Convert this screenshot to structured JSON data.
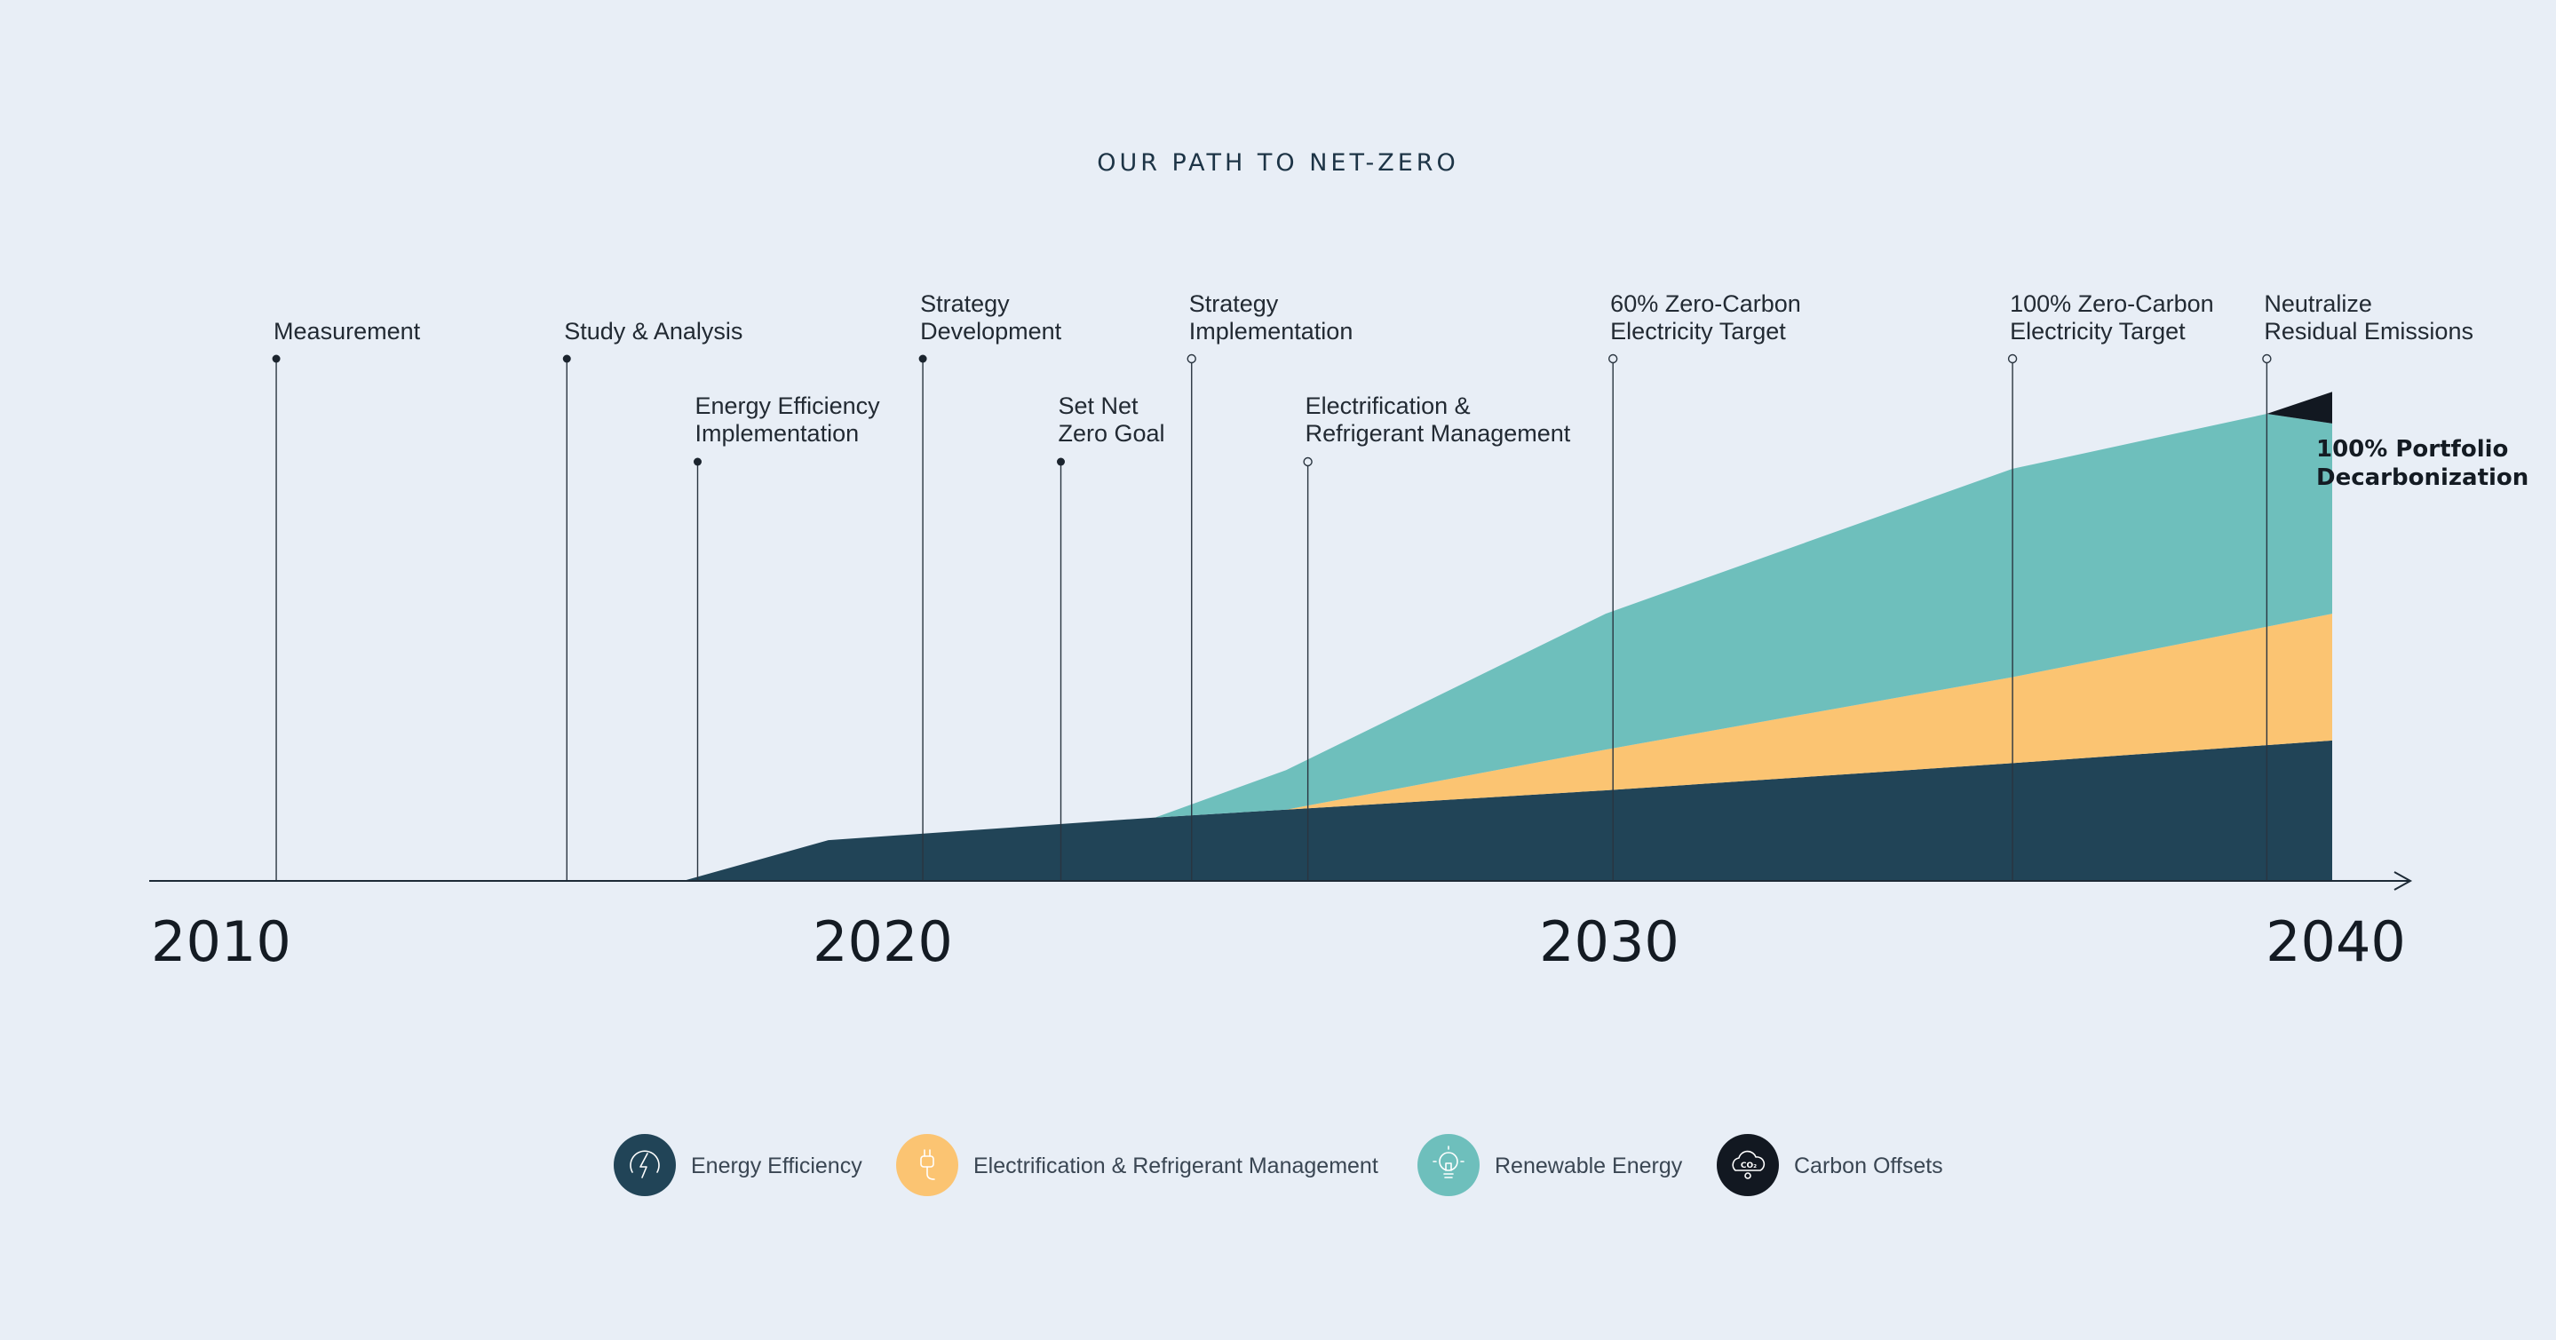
{
  "title": "OUR PATH TO NET-ZERO",
  "colors": {
    "background": "#e8eef6",
    "energy_efficiency": "#214457",
    "electrification": "#fbc472",
    "renewable": "#6ebfbc",
    "carbon_offsets": "#121821",
    "axis": "#1d2a36"
  },
  "chart_data": {
    "type": "area",
    "title": "OUR PATH TO NET-ZERO",
    "x_ticks": [
      "2010",
      "2020",
      "2030",
      "2040"
    ],
    "xlim": [
      2010,
      2043.5
    ],
    "ylim": [
      0,
      100
    ],
    "stacked": true,
    "series": [
      {
        "name": "Energy Efficiency",
        "color": "#214457",
        "icon": "lightning-leaf-icon",
        "points": [
          [
            2017.3,
            0
          ],
          [
            2019.3,
            9
          ],
          [
            2023.8,
            14
          ],
          [
            2030,
            20
          ],
          [
            2035.6,
            26
          ],
          [
            2040,
            31
          ]
        ]
      },
      {
        "name": "Electrification & Refrigerant Management",
        "color": "#fbc472",
        "icon": "plug-icon",
        "points": [
          [
            2025.6,
            0
          ],
          [
            2030,
            9
          ],
          [
            2035.6,
            19
          ],
          [
            2040,
            28
          ]
        ]
      },
      {
        "name": "Renewable Energy",
        "color": "#6ebfbc",
        "icon": "lightbulb-icon",
        "points": [
          [
            2023.8,
            0
          ],
          [
            2030,
            30
          ],
          [
            2035.6,
            46
          ],
          [
            2039.1,
            47
          ],
          [
            2040,
            42
          ]
        ]
      },
      {
        "name": "Carbon Offsets",
        "color": "#121821",
        "icon": "co2-cloud-icon",
        "points": [
          [
            2039.1,
            0
          ],
          [
            2040,
            7
          ]
        ]
      }
    ],
    "milestones": [
      {
        "lines": [
          "Measurement"
        ],
        "year": 2011.7,
        "level": "high",
        "marker": "filled"
      },
      {
        "lines": [
          "Study & Analysis"
        ],
        "year": 2015.7,
        "level": "high",
        "marker": "filled"
      },
      {
        "lines": [
          "Energy Efficiency",
          "Implementation"
        ],
        "year": 2017.5,
        "level": "low",
        "marker": "filled"
      },
      {
        "lines": [
          "Strategy",
          "Development"
        ],
        "year": 2020.6,
        "level": "high",
        "marker": "filled"
      },
      {
        "lines": [
          "Set Net",
          "Zero Goal"
        ],
        "year": 2022.5,
        "level": "low",
        "marker": "filled"
      },
      {
        "lines": [
          "Strategy",
          "Implementation"
        ],
        "year": 2024.3,
        "level": "high",
        "marker": "open"
      },
      {
        "lines": [
          "Electrification &",
          "Refrigerant Management"
        ],
        "year": 2025.9,
        "level": "low",
        "marker": "open"
      },
      {
        "lines": [
          "60% Zero-Carbon",
          "Electricity Target"
        ],
        "year": 2030.1,
        "level": "high",
        "marker": "open"
      },
      {
        "lines": [
          "100% Zero-Carbon",
          "Electricity Target"
        ],
        "year": 2035.6,
        "level": "high",
        "marker": "open"
      },
      {
        "lines": [
          "Neutralize",
          "Residual Emissions"
        ],
        "year": 2039.1,
        "level": "high",
        "marker": "open"
      }
    ],
    "endpoint_label": [
      "100% Portfolio",
      "Decarbonization"
    ]
  },
  "legend": [
    {
      "label": "Energy Efficiency",
      "color": "#214457",
      "icon": "lightning-leaf-icon"
    },
    {
      "label": "Electrification & Refrigerant Management",
      "color": "#fbc472",
      "icon": "plug-icon"
    },
    {
      "label": "Renewable Energy",
      "color": "#6ebfbc",
      "icon": "lightbulb-icon"
    },
    {
      "label": "Carbon Offsets",
      "color": "#121821",
      "icon": "co2-cloud-icon"
    }
  ]
}
